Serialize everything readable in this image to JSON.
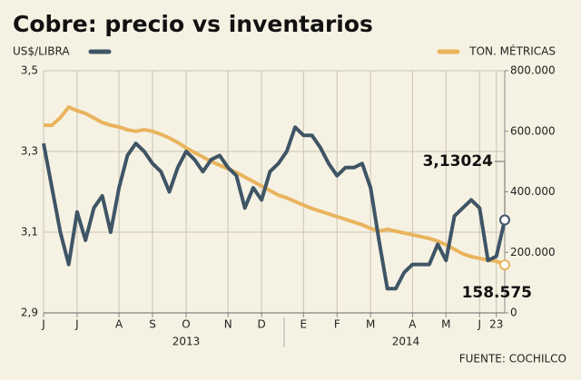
{
  "chart_data": {
    "type": "line",
    "title": "Cobre: precio vs inventarios",
    "y_label": "US$/LIBRA",
    "y2_label": "TON. MÉTRICAS",
    "source": "FUENTE: COCHILCO",
    "year_labels": [
      "2013",
      "2014"
    ],
    "categories": [
      "J",
      null,
      null,
      null,
      "J",
      null,
      null,
      null,
      null,
      "A",
      null,
      null,
      null,
      "S",
      null,
      null,
      null,
      "O",
      null,
      null,
      null,
      null,
      "N",
      null,
      null,
      null,
      "D",
      null,
      null,
      null,
      null,
      "E",
      null,
      null,
      null,
      "F",
      null,
      null,
      null,
      "M",
      null,
      null,
      null,
      null,
      "A",
      null,
      null,
      null,
      "M",
      null,
      null,
      null,
      "J",
      null,
      "23",
      null
    ],
    "ylim": [
      2.9,
      3.5
    ],
    "yticks": [
      {
        "value": 2.9,
        "label": "2,9"
      },
      {
        "value": 3.1,
        "label": "3,1"
      },
      {
        "value": 3.3,
        "label": "3,3"
      },
      {
        "value": 3.5,
        "label": "3,5"
      }
    ],
    "y2lim": [
      0,
      800000
    ],
    "y2ticks": [
      0,
      {
        "value": 200000,
        "label": "200.000"
      },
      {
        "value": 400000,
        "label": "400.000"
      },
      {
        "value": 600000,
        "label": "600.000"
      },
      {
        "value": 800000,
        "label": "800.000"
      }
    ],
    "grid": true,
    "series": [
      {
        "name": "US$/LIBRA",
        "color": "#3f5566",
        "values": [
          3.32,
          3.21,
          3.1,
          3.02,
          3.15,
          3.08,
          3.16,
          3.19,
          3.1,
          3.21,
          3.29,
          3.32,
          3.3,
          3.27,
          3.25,
          3.2,
          3.26,
          3.3,
          3.28,
          3.25,
          3.28,
          3.29,
          3.26,
          3.24,
          3.16,
          3.21,
          3.18,
          3.25,
          3.27,
          3.3,
          3.36,
          3.34,
          3.34,
          3.31,
          3.27,
          3.24,
          3.26,
          3.26,
          3.27,
          3.21,
          3.08,
          2.96,
          2.96,
          3.0,
          3.02,
          3.02,
          3.02,
          3.07,
          3.03,
          3.14,
          3.16,
          3.18,
          3.16,
          3.03,
          3.04,
          3.13024
        ],
        "value_labels": [
          null,
          null,
          null,
          null,
          null,
          null,
          null,
          null,
          null,
          null,
          null,
          null,
          null,
          null,
          null,
          null,
          null,
          null,
          null,
          null,
          null,
          null,
          null,
          null,
          null,
          null,
          null,
          null,
          null,
          null,
          null,
          null,
          null,
          null,
          null,
          null,
          null,
          null,
          null,
          null,
          null,
          null,
          null,
          null,
          null,
          null,
          null,
          null,
          null,
          null,
          null,
          null,
          null,
          null,
          null,
          "3,13024"
        ]
      },
      {
        "name": "TON. MÉTRICAS",
        "color": "#e9b45e",
        "axis": "y2",
        "values": [
          620000,
          620000,
          645000,
          680000,
          668000,
          659000,
          644000,
          629000,
          620000,
          614000,
          605000,
          600000,
          605000,
          600000,
          590000,
          578000,
          563000,
          545000,
          530000,
          515000,
          500000,
          488000,
          476000,
          464000,
          449000,
          434000,
          419000,
          404000,
          389000,
          380000,
          368000,
          356000,
          345000,
          336000,
          327000,
          318000,
          309000,
          300000,
          291000,
          279000,
          270000,
          276000,
          270000,
          264000,
          258000,
          252000,
          246000,
          237000,
          225000,
          210000,
          195000,
          186000,
          180000,
          174000,
          171000,
          158575
        ],
        "value_labels": [
          null,
          null,
          null,
          null,
          null,
          null,
          null,
          null,
          null,
          null,
          null,
          null,
          null,
          null,
          null,
          null,
          null,
          null,
          null,
          null,
          null,
          null,
          null,
          null,
          null,
          null,
          null,
          null,
          null,
          null,
          null,
          null,
          null,
          null,
          null,
          null,
          null,
          null,
          null,
          null,
          null,
          null,
          null,
          null,
          null,
          null,
          null,
          null,
          null,
          null,
          null,
          null,
          null,
          null,
          null,
          "158.575"
        ]
      }
    ]
  }
}
